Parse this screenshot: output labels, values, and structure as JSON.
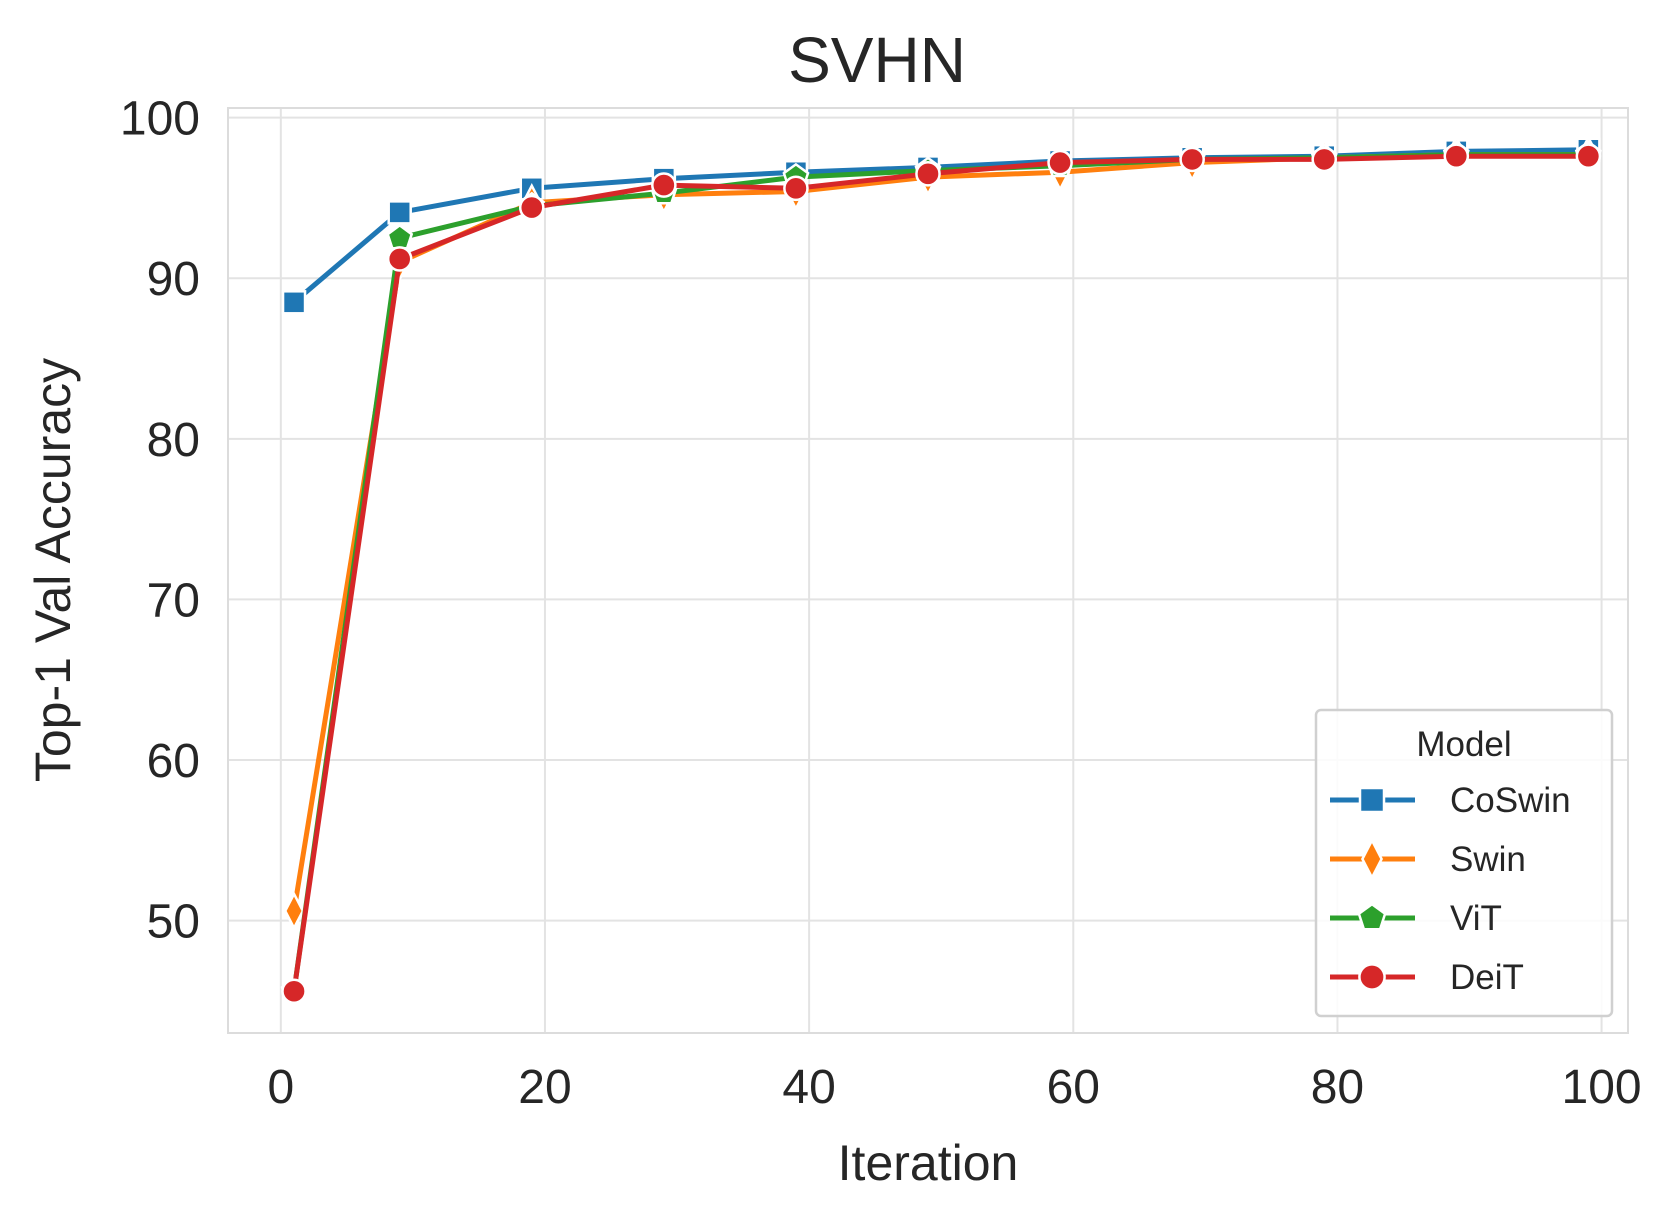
{
  "chart_data": {
    "type": "line",
    "title": "SVHN",
    "xlabel": "Iteration",
    "ylabel": "Top-1 Val Accuracy",
    "xlim": [
      -4,
      102
    ],
    "ylim": [
      43,
      100.6
    ],
    "xticks": [
      0,
      20,
      40,
      60,
      80,
      100
    ],
    "yticks": [
      50,
      60,
      70,
      80,
      90,
      100
    ],
    "grid": true,
    "legend": {
      "title": "Model",
      "placement": "lower-right"
    },
    "x": [
      1,
      9,
      19,
      29,
      39,
      49,
      59,
      69,
      79,
      89,
      99
    ],
    "series": [
      {
        "name": "CoSwin",
        "color": "#1f77b4",
        "marker": "square",
        "values": [
          88.5,
          94.1,
          95.6,
          96.2,
          96.6,
          96.9,
          97.3,
          97.5,
          97.6,
          97.9,
          98.0
        ]
      },
      {
        "name": "Swin",
        "color": "#ff7f0e",
        "marker": "diamond",
        "values": [
          50.6,
          91.0,
          94.7,
          95.2,
          95.4,
          96.3,
          96.6,
          97.2,
          97.5,
          97.7,
          97.7
        ]
      },
      {
        "name": "ViT",
        "color": "#2ca02c",
        "marker": "pentagon",
        "values": [
          45.6,
          92.5,
          94.5,
          95.3,
          96.3,
          96.7,
          97.0,
          97.4,
          97.5,
          97.7,
          97.7
        ]
      },
      {
        "name": "DeiT",
        "color": "#d62728",
        "marker": "circle",
        "values": [
          45.6,
          91.2,
          94.4,
          95.8,
          95.6,
          96.5,
          97.2,
          97.4,
          97.4,
          97.6,
          97.6
        ]
      }
    ]
  }
}
